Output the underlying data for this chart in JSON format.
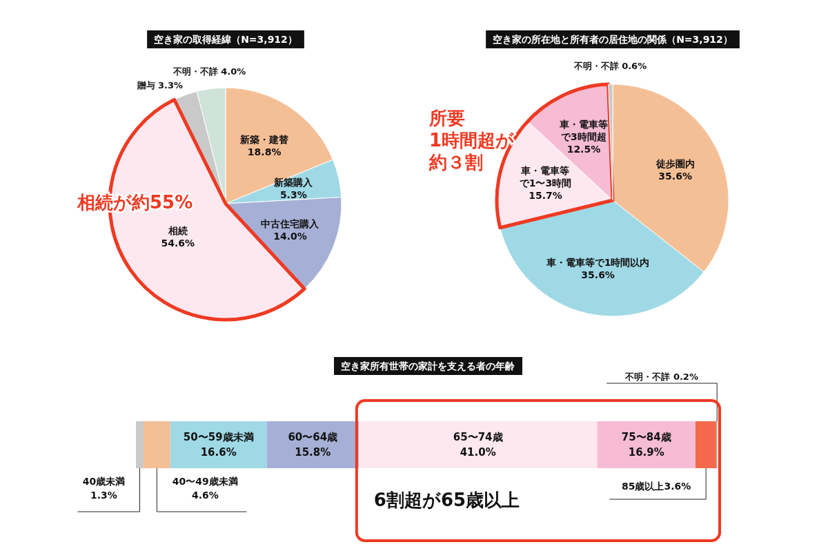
{
  "chart_data": [
    {
      "type": "pie",
      "title": "空き家の取得経緯（N=3,912）",
      "categories": [
        "新築・建替",
        "新築購入",
        "中古住宅購入",
        "相続",
        "贈与",
        "不明・不詳"
      ],
      "values": [
        18.8,
        5.3,
        14.0,
        54.6,
        3.3,
        4.0
      ],
      "value_labels": [
        "18.8%",
        "5.3%",
        "14.0%",
        "54.6%",
        "3.3%",
        "4.0%"
      ],
      "colors": [
        "#f5bf96",
        "#9fd9e6",
        "#a6b0d6",
        "#fde8f0",
        "#c9c9c9",
        "#cfe3da"
      ],
      "annotations": [
        "相続が約55%"
      ]
    },
    {
      "type": "pie",
      "title": "空き家の所在地と所有者の居住地の関係（N=3,912）",
      "categories": [
        "徒歩圏内",
        "車・電車等で1時間以内",
        "車・電車等で1〜3時間",
        "車・電車等で3時間超",
        "不明・不詳"
      ],
      "values": [
        35.6,
        35.6,
        15.7,
        12.5,
        0.6
      ],
      "value_labels": [
        "35.6%",
        "35.6%",
        "15.7%",
        "12.5%",
        "0.6%"
      ],
      "colors": [
        "#f5bf96",
        "#9fd9e6",
        "#fde8f0",
        "#f6bcd3",
        "#c9c9c9"
      ],
      "annotations": [
        "所要",
        "1時間超が",
        "約３割"
      ]
    },
    {
      "type": "bar",
      "orientation": "horizontal",
      "stacked": true,
      "title": "空き家所有世帯の家計を支える者の年齢",
      "categories": [
        null
      ],
      "series": [
        {
          "name": "40歳未満",
          "color": "#c9c9c9",
          "values": [
            1.3
          ],
          "value_labels": [
            "1.3%"
          ]
        },
        {
          "name": "40〜49歳未満",
          "color": "#f5bf96",
          "values": [
            4.6
          ],
          "value_labels": [
            "4.6%"
          ]
        },
        {
          "name": "50〜59歳未満",
          "color": "#9fd9e6",
          "values": [
            16.6
          ],
          "value_labels": [
            "16.6%"
          ]
        },
        {
          "name": "60〜64歳",
          "color": "#a6b0d6",
          "values": [
            15.8
          ],
          "value_labels": [
            "15.8%"
          ]
        },
        {
          "name": "65〜74歳",
          "color": "#fde8f0",
          "values": [
            41.0
          ],
          "value_labels": [
            "41.0%"
          ]
        },
        {
          "name": "75〜84歳",
          "color": "#f6bcd3",
          "values": [
            16.9
          ],
          "value_labels": [
            "16.9%"
          ]
        },
        {
          "name": "85歳以上",
          "color": "#f26a4b",
          "values": [
            3.6
          ],
          "value_labels": [
            "3.6%"
          ]
        },
        {
          "name": "不明・不詳",
          "color": "#e8e8e8",
          "values": [
            0.2
          ],
          "value_labels": [
            "0.2%"
          ]
        }
      ],
      "annotations": [
        "6割超が65歳以上"
      ]
    }
  ]
}
